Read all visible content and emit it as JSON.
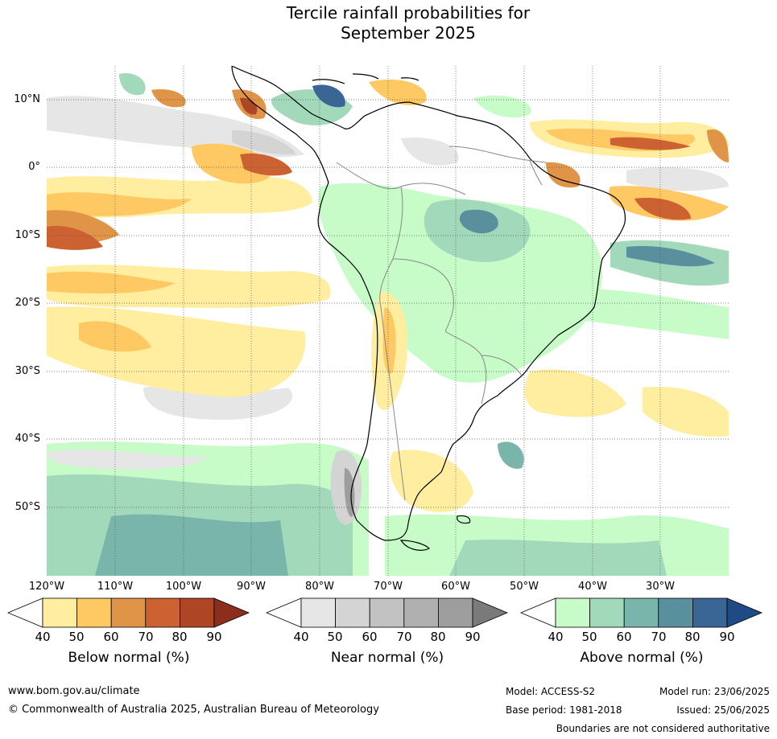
{
  "title": {
    "line1": "Tercile rainfall probabilities for",
    "line2": "September 2025"
  },
  "map": {
    "lat_labels": [
      "10°N",
      "0°",
      "10°S",
      "20°S",
      "30°S",
      "40°S",
      "50°S"
    ],
    "lon_labels": [
      "120°W",
      "110°W",
      "100°W",
      "90°W",
      "80°W",
      "70°W",
      "60°W",
      "50°W",
      "40°W",
      "30°W"
    ],
    "colors": {
      "below": [
        "#ffeda0",
        "#fec863",
        "#e09447",
        "#cc6232",
        "#ae4626",
        "#8c2e1e"
      ],
      "near": [
        "#e6e6e6",
        "#d4d4d4",
        "#c2c2c2",
        "#b0b0b0",
        "#9e9e9e",
        "#7a7a7a"
      ],
      "above": [
        "#c7fcc9",
        "#a3d9bb",
        "#7ab5ac",
        "#5a8f9e",
        "#3a6696",
        "#1f4b85"
      ],
      "coast": "#000000",
      "borders": "#888888",
      "grid": "#555555"
    }
  },
  "colorbars": [
    {
      "title": "Below normal (%)",
      "ticks": [
        "40",
        "50",
        "60",
        "70",
        "80",
        "90"
      ]
    },
    {
      "title": "Near normal (%)",
      "ticks": [
        "40",
        "50",
        "60",
        "70",
        "80",
        "90"
      ]
    },
    {
      "title": "Above normal (%)",
      "ticks": [
        "40",
        "50",
        "60",
        "70",
        "80",
        "90"
      ]
    }
  ],
  "footer": {
    "website": "www.bom.gov.au/climate",
    "copyright": "© Commonwealth of Australia 2025, Australian Bureau of Meteorology",
    "model": "Model: ACCESS-S2",
    "base_period": "Base period: 1981-2018",
    "model_run": "Model run: 23/06/2025",
    "issued": "Issued: 25/06/2025",
    "boundaries": "Boundaries are not considered authoritative"
  }
}
